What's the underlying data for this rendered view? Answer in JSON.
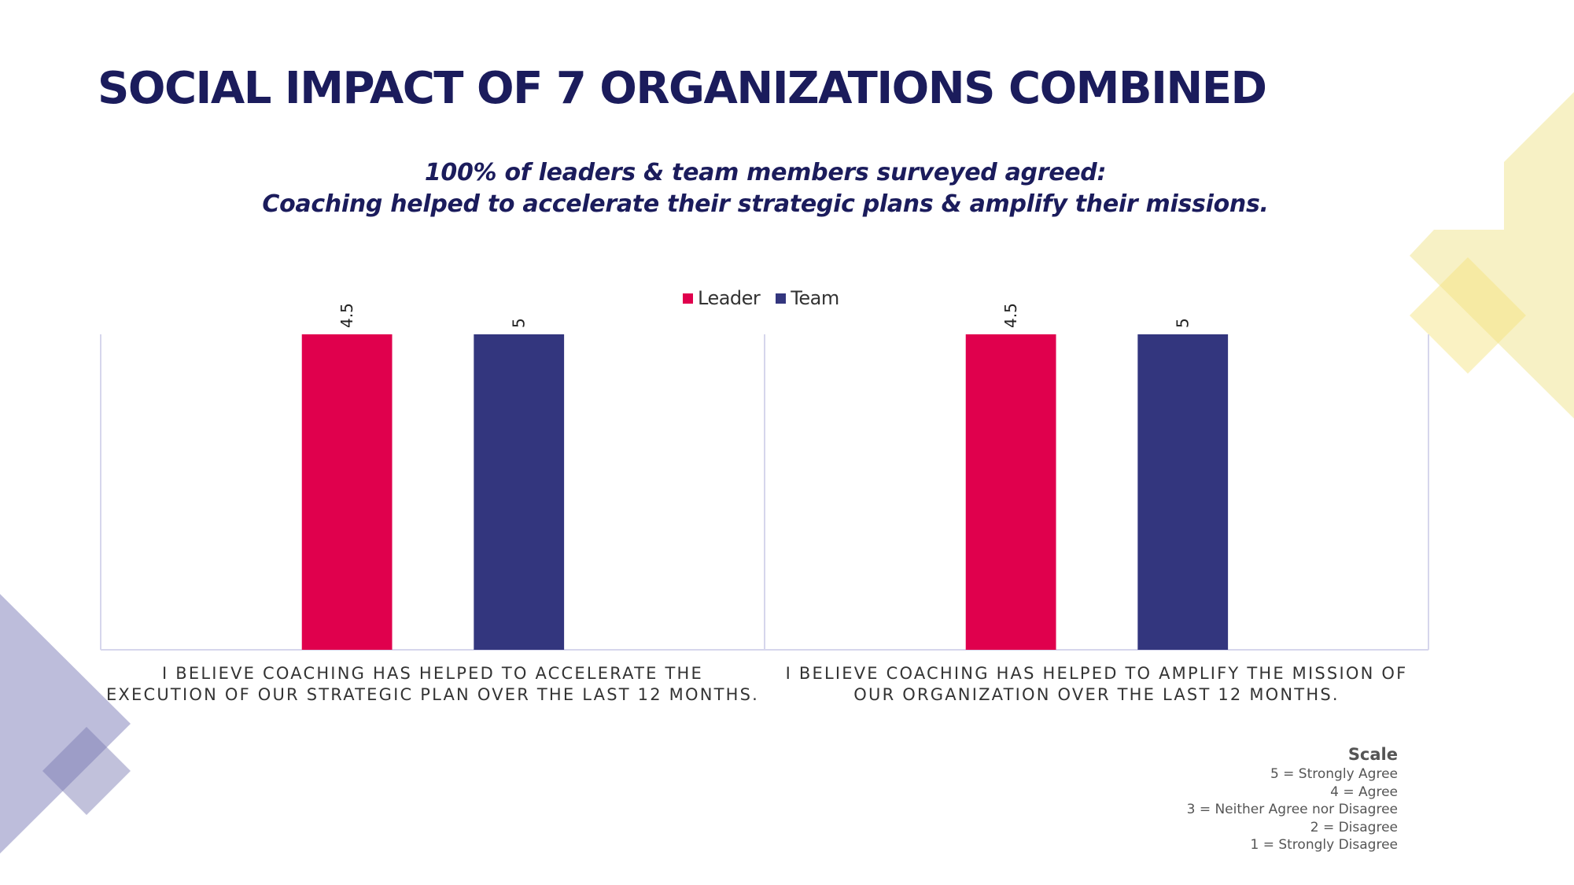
{
  "slide": {
    "title": "SOCIAL IMPACT OF 7 ORGANIZATIONS COMBINED",
    "subtitle_lines": [
      "100% of leaders & team members surveyed agreed:",
      "Coaching helped to accelerate their strategic plans & amplify their missions."
    ],
    "colors": {
      "title": "#1b1c5c",
      "leader": "#e0004d",
      "team": "#33367e",
      "axis": "#d6d6ec",
      "deco_yellow": "#f7f0c2",
      "deco_purple": "#bdbddb"
    }
  },
  "chart_data": {
    "type": "bar",
    "title": "",
    "xlabel": "",
    "ylabel": "",
    "ylim": [
      0,
      4.5
    ],
    "grid": false,
    "legend_position": "top-center",
    "categories": [
      "I BELIEVE COACHING HAS HELPED TO ACCELERATE THE EXECUTION OF OUR STRATEGIC PLAN OVER THE LAST 12 MONTHS.",
      "I BELIEVE COACHING HAS HELPED TO AMPLIFY THE MISSION OF OUR ORGANIZATION OVER THE LAST 12 MONTHS."
    ],
    "category_label_lines": [
      [
        "I BELIEVE COACHING HAS HELPED TO ACCELERATE THE",
        "EXECUTION OF OUR STRATEGIC PLAN OVER THE LAST 12 MONTHS."
      ],
      [
        "I BELIEVE COACHING HAS HELPED TO AMPLIFY THE MISSION OF",
        "OUR ORGANIZATION OVER THE LAST 12 MONTHS."
      ]
    ],
    "series": [
      {
        "name": "Leader",
        "color": "#e0004d",
        "values": [
          4.5,
          4.5
        ],
        "labels": [
          "4.5",
          "4.5"
        ]
      },
      {
        "name": "Team",
        "color": "#33367e",
        "values": [
          5,
          5
        ],
        "labels": [
          "5",
          "5"
        ]
      }
    ]
  },
  "scale": {
    "title": "Scale",
    "items": [
      "5 = Strongly Agree",
      "4 = Agree",
      "3 = Neither Agree nor Disagree",
      "2 = Disagree",
      "1 = Strongly Disagree"
    ]
  }
}
